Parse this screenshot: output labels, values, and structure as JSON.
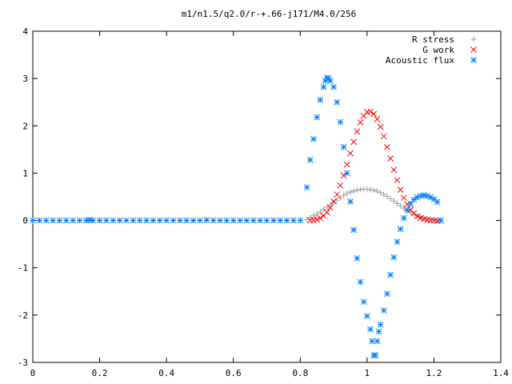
{
  "chart_data": {
    "type": "scatter",
    "title": "m1/n1.5/q2.0/r-+.66-j171/M4.0/256",
    "xlabel": "",
    "ylabel": "",
    "xlim": [
      0,
      1.4
    ],
    "ylim": [
      -3,
      4
    ],
    "xticks": [
      0,
      0.2,
      0.4,
      0.6,
      0.8,
      1,
      1.2,
      1.4
    ],
    "yticks": [
      -3,
      -2,
      -1,
      0,
      1,
      2,
      3,
      4
    ],
    "grid": false,
    "legend_position": "top-right",
    "series": [
      {
        "name": "R stress",
        "marker": "plus",
        "color": "#a0a0a0",
        "points": [
          [
            0.0,
            0
          ],
          [
            0.02,
            0
          ],
          [
            0.04,
            0
          ],
          [
            0.06,
            0
          ],
          [
            0.08,
            0
          ],
          [
            0.1,
            0
          ],
          [
            0.12,
            0
          ],
          [
            0.14,
            0
          ],
          [
            0.16,
            0
          ],
          [
            0.18,
            0
          ],
          [
            0.2,
            0
          ],
          [
            0.22,
            0
          ],
          [
            0.24,
            0
          ],
          [
            0.26,
            0
          ],
          [
            0.28,
            0
          ],
          [
            0.3,
            0
          ],
          [
            0.32,
            0
          ],
          [
            0.34,
            0
          ],
          [
            0.36,
            0
          ],
          [
            0.38,
            0
          ],
          [
            0.4,
            0
          ],
          [
            0.42,
            0
          ],
          [
            0.44,
            0
          ],
          [
            0.46,
            0
          ],
          [
            0.48,
            0
          ],
          [
            0.5,
            0
          ],
          [
            0.52,
            0
          ],
          [
            0.54,
            0
          ],
          [
            0.56,
            0
          ],
          [
            0.58,
            0
          ],
          [
            0.6,
            0
          ],
          [
            0.62,
            0
          ],
          [
            0.64,
            0
          ],
          [
            0.66,
            0
          ],
          [
            0.68,
            0
          ],
          [
            0.7,
            0
          ],
          [
            0.72,
            0
          ],
          [
            0.74,
            0
          ],
          [
            0.76,
            0
          ],
          [
            0.78,
            0
          ],
          [
            0.8,
            0
          ],
          [
            0.82,
            0.02
          ],
          [
            0.83,
            0.06
          ],
          [
            0.84,
            0.1
          ],
          [
            0.85,
            0.14
          ],
          [
            0.86,
            0.18
          ],
          [
            0.87,
            0.23
          ],
          [
            0.88,
            0.28
          ],
          [
            0.89,
            0.33
          ],
          [
            0.9,
            0.38
          ],
          [
            0.91,
            0.43
          ],
          [
            0.92,
            0.48
          ],
          [
            0.93,
            0.53
          ],
          [
            0.94,
            0.57
          ],
          [
            0.95,
            0.6
          ],
          [
            0.96,
            0.62
          ],
          [
            0.97,
            0.64
          ],
          [
            0.98,
            0.65
          ],
          [
            0.99,
            0.66
          ],
          [
            1.0,
            0.66
          ],
          [
            1.01,
            0.65
          ],
          [
            1.02,
            0.64
          ],
          [
            1.03,
            0.62
          ],
          [
            1.04,
            0.59
          ],
          [
            1.05,
            0.55
          ],
          [
            1.06,
            0.51
          ],
          [
            1.07,
            0.46
          ],
          [
            1.08,
            0.41
          ],
          [
            1.09,
            0.36
          ],
          [
            1.1,
            0.31
          ],
          [
            1.11,
            0.26
          ],
          [
            1.12,
            0.21
          ],
          [
            1.13,
            0.17
          ],
          [
            1.14,
            0.13
          ],
          [
            1.15,
            0.1
          ],
          [
            1.16,
            0.07
          ],
          [
            1.17,
            0.05
          ],
          [
            1.18,
            0.03
          ],
          [
            1.19,
            0.02
          ],
          [
            1.2,
            0.01
          ],
          [
            1.21,
            0.0
          ],
          [
            1.22,
            0.0
          ]
        ]
      },
      {
        "name": "G work",
        "marker": "cross",
        "color": "#ff0000",
        "points": [
          [
            0.83,
            0.0
          ],
          [
            0.84,
            0.01
          ],
          [
            0.85,
            0.02
          ],
          [
            0.86,
            0.05
          ],
          [
            0.87,
            0.1
          ],
          [
            0.88,
            0.17
          ],
          [
            0.89,
            0.27
          ],
          [
            0.9,
            0.4
          ],
          [
            0.91,
            0.55
          ],
          [
            0.92,
            0.74
          ],
          [
            0.93,
            0.95
          ],
          [
            0.94,
            1.18
          ],
          [
            0.95,
            1.42
          ],
          [
            0.96,
            1.66
          ],
          [
            0.97,
            1.88
          ],
          [
            0.98,
            2.07
          ],
          [
            0.99,
            2.21
          ],
          [
            1.0,
            2.29
          ],
          [
            1.01,
            2.3
          ],
          [
            1.02,
            2.25
          ],
          [
            1.03,
            2.14
          ],
          [
            1.04,
            1.98
          ],
          [
            1.05,
            1.78
          ],
          [
            1.06,
            1.55
          ],
          [
            1.07,
            1.31
          ],
          [
            1.08,
            1.07
          ],
          [
            1.09,
            0.85
          ],
          [
            1.1,
            0.65
          ],
          [
            1.11,
            0.48
          ],
          [
            1.12,
            0.34
          ],
          [
            1.13,
            0.23
          ],
          [
            1.14,
            0.15
          ],
          [
            1.15,
            0.09
          ],
          [
            1.16,
            0.05
          ],
          [
            1.17,
            0.03
          ],
          [
            1.18,
            0.01
          ],
          [
            1.19,
            0.0
          ],
          [
            1.2,
            0.0
          ],
          [
            1.21,
            -0.01
          ],
          [
            1.22,
            0.0
          ]
        ]
      },
      {
        "name": "Acoustic flux",
        "marker": "star",
        "color": "#0080ff",
        "points": [
          [
            0.0,
            0
          ],
          [
            0.02,
            0
          ],
          [
            0.04,
            0
          ],
          [
            0.06,
            0
          ],
          [
            0.08,
            0
          ],
          [
            0.1,
            0
          ],
          [
            0.12,
            0
          ],
          [
            0.14,
            0
          ],
          [
            0.16,
            0
          ],
          [
            0.17,
            0.01
          ],
          [
            0.18,
            0
          ],
          [
            0.2,
            0
          ],
          [
            0.22,
            0
          ],
          [
            0.24,
            0
          ],
          [
            0.26,
            0
          ],
          [
            0.28,
            0
          ],
          [
            0.3,
            0
          ],
          [
            0.32,
            0
          ],
          [
            0.34,
            0
          ],
          [
            0.36,
            0
          ],
          [
            0.38,
            0
          ],
          [
            0.4,
            0
          ],
          [
            0.42,
            0
          ],
          [
            0.44,
            0
          ],
          [
            0.46,
            0
          ],
          [
            0.48,
            0
          ],
          [
            0.5,
            0
          ],
          [
            0.52,
            0.01
          ],
          [
            0.54,
            0
          ],
          [
            0.56,
            0
          ],
          [
            0.58,
            0
          ],
          [
            0.6,
            0
          ],
          [
            0.62,
            0
          ],
          [
            0.64,
            0
          ],
          [
            0.66,
            0
          ],
          [
            0.68,
            0
          ],
          [
            0.7,
            0
          ],
          [
            0.72,
            0
          ],
          [
            0.74,
            0
          ],
          [
            0.76,
            0
          ],
          [
            0.78,
            0
          ],
          [
            0.8,
            0
          ],
          [
            0.82,
            0.7
          ],
          [
            0.83,
            1.28
          ],
          [
            0.84,
            1.72
          ],
          [
            0.85,
            2.18
          ],
          [
            0.86,
            2.55
          ],
          [
            0.87,
            2.82
          ],
          [
            0.875,
            2.95
          ],
          [
            0.88,
            3.02
          ],
          [
            0.885,
            3.0
          ],
          [
            0.89,
            2.95
          ],
          [
            0.9,
            2.82
          ],
          [
            0.91,
            2.5
          ],
          [
            0.92,
            2.08
          ],
          [
            0.93,
            1.55
          ],
          [
            0.94,
            1.0
          ],
          [
            0.95,
            0.4
          ],
          [
            0.96,
            -0.2
          ],
          [
            0.97,
            -0.8
          ],
          [
            0.98,
            -1.3
          ],
          [
            0.99,
            -1.72
          ],
          [
            1.0,
            -2.02
          ],
          [
            1.01,
            -2.3
          ],
          [
            1.015,
            -2.55
          ],
          [
            1.02,
            -2.85
          ],
          [
            1.025,
            -2.85
          ],
          [
            1.03,
            -2.55
          ],
          [
            1.035,
            -2.35
          ],
          [
            1.04,
            -2.2
          ],
          [
            1.05,
            -1.9
          ],
          [
            1.06,
            -1.55
          ],
          [
            1.07,
            -1.15
          ],
          [
            1.08,
            -0.78
          ],
          [
            1.09,
            -0.45
          ],
          [
            1.1,
            -0.18
          ],
          [
            1.11,
            0.05
          ],
          [
            1.12,
            0.22
          ],
          [
            1.13,
            0.35
          ],
          [
            1.14,
            0.44
          ],
          [
            1.15,
            0.49
          ],
          [
            1.16,
            0.52
          ],
          [
            1.17,
            0.53
          ],
          [
            1.18,
            0.52
          ],
          [
            1.19,
            0.49
          ],
          [
            1.2,
            0.45
          ],
          [
            1.21,
            0.39
          ],
          [
            1.22,
            0.0
          ]
        ]
      }
    ]
  }
}
